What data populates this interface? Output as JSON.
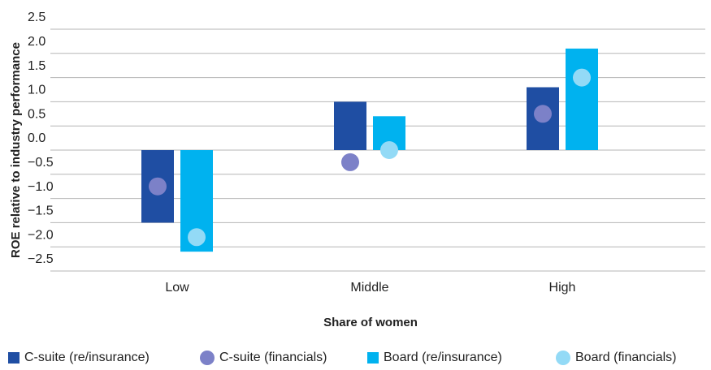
{
  "chart_data": {
    "type": "bar",
    "y_label": "ROE relative to industry performance",
    "x_label": "Share of women",
    "categories": [
      "Low",
      "Middle",
      "High"
    ],
    "series": [
      {
        "name": "C-suite (re/insurance)",
        "marker": "bar",
        "color": "#1f4ea3",
        "values": [
          -1.5,
          1.0,
          1.3
        ]
      },
      {
        "name": "C-suite (financials)",
        "marker": "dot",
        "color": "#7c81c8",
        "values": [
          -0.75,
          -0.25,
          0.75
        ]
      },
      {
        "name": "Board (re/insurance)",
        "marker": "bar",
        "color": "#00b2ef",
        "values": [
          -2.1,
          0.7,
          2.1
        ]
      },
      {
        "name": "Board (financials)",
        "marker": "dot",
        "color": "#93daf6",
        "values": [
          -1.8,
          0.0,
          1.5
        ]
      }
    ],
    "ylim": [
      -2.5,
      2.5
    ],
    "yticks": [
      2.5,
      {
        "value": 2.0,
        "label": "2.0"
      },
      1.5,
      {
        "value": 1.0,
        "label": "1.0"
      },
      0.5,
      {
        "value": 0.0,
        "label": "0.0"
      },
      {
        "value": -0.5,
        "label": "−0.5"
      },
      {
        "value": -1.0,
        "label": "−1.0"
      },
      {
        "value": -1.5,
        "label": "−1.5"
      },
      {
        "value": -2.0,
        "label": "−2.0"
      },
      {
        "value": -2.5,
        "label": "−2.5"
      }
    ],
    "grid": true
  }
}
